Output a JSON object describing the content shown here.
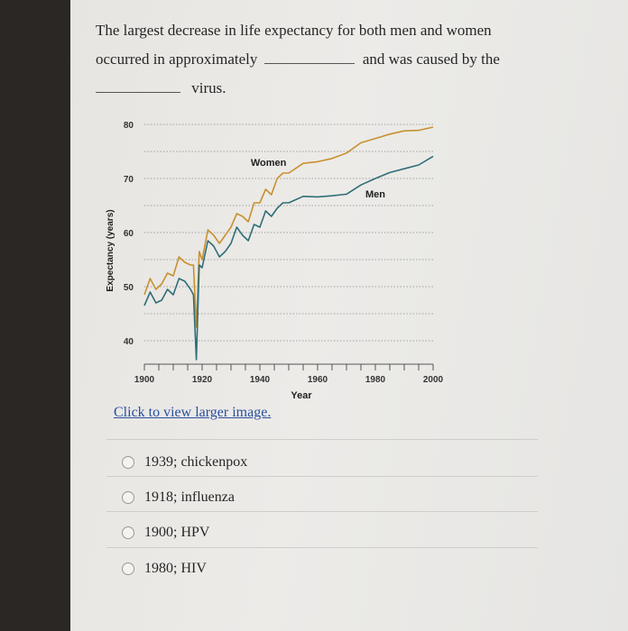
{
  "question": {
    "line1": "The largest decrease in life expectancy for both men and women",
    "line2a": "occurred in approximately",
    "line2b": "and was caused by the",
    "line3": "virus."
  },
  "link_text": "Click to view larger image.",
  "options": [
    {
      "label": "1939; chickenpox"
    },
    {
      "label": "1918; influenza"
    },
    {
      "label": "1900; HPV"
    },
    {
      "label": "1980; HIV"
    }
  ],
  "chart_data": {
    "type": "line",
    "xlabel": "Year",
    "ylabel": "Expectancy (years)",
    "xlim": [
      1900,
      2000
    ],
    "ylim": [
      40,
      80
    ],
    "x_ticks": [
      1900,
      1920,
      1940,
      1960,
      1980,
      2000
    ],
    "y_ticks": [
      40,
      50,
      60,
      70,
      80
    ],
    "grid": true,
    "series": [
      {
        "name": "Women",
        "color": "#c8912f",
        "x": [
          1900,
          1902,
          1904,
          1906,
          1908,
          1910,
          1912,
          1914,
          1916,
          1917,
          1918,
          1919,
          1920,
          1922,
          1924,
          1926,
          1928,
          1930,
          1932,
          1934,
          1936,
          1938,
          1940,
          1942,
          1944,
          1946,
          1948,
          1950,
          1955,
          1960,
          1965,
          1970,
          1975,
          1980,
          1985,
          1990,
          1995,
          2000
        ],
        "y": [
          48.5,
          51.5,
          49.5,
          50.5,
          52.5,
          52,
          55.5,
          54.5,
          54,
          54,
          42.5,
          56.5,
          55,
          60.5,
          59.5,
          58,
          59.5,
          61,
          63.5,
          63,
          62,
          65.5,
          65.5,
          68,
          67,
          70,
          71,
          71,
          72.8,
          73.1,
          73.7,
          74.7,
          76.6,
          77.4,
          78.2,
          78.8,
          78.9,
          79.5
        ]
      },
      {
        "name": "Men",
        "color": "#2f6e78",
        "x": [
          1900,
          1902,
          1904,
          1906,
          1908,
          1910,
          1912,
          1914,
          1916,
          1917,
          1918,
          1919,
          1920,
          1922,
          1924,
          1926,
          1928,
          1930,
          1932,
          1934,
          1936,
          1938,
          1940,
          1942,
          1944,
          1946,
          1948,
          1950,
          1955,
          1960,
          1965,
          1970,
          1975,
          1980,
          1985,
          1990,
          1995,
          2000
        ],
        "y": [
          46.5,
          49,
          47,
          47.5,
          49.5,
          48.5,
          51.5,
          51,
          49.5,
          48.5,
          36.5,
          54,
          53.5,
          58.5,
          57.5,
          55.5,
          56.5,
          58,
          61,
          59.5,
          58.5,
          61.5,
          61,
          64,
          63,
          64.5,
          65.5,
          65.5,
          66.7,
          66.6,
          66.8,
          67.1,
          68.8,
          70,
          71.1,
          71.8,
          72.5,
          74.1
        ]
      }
    ]
  }
}
